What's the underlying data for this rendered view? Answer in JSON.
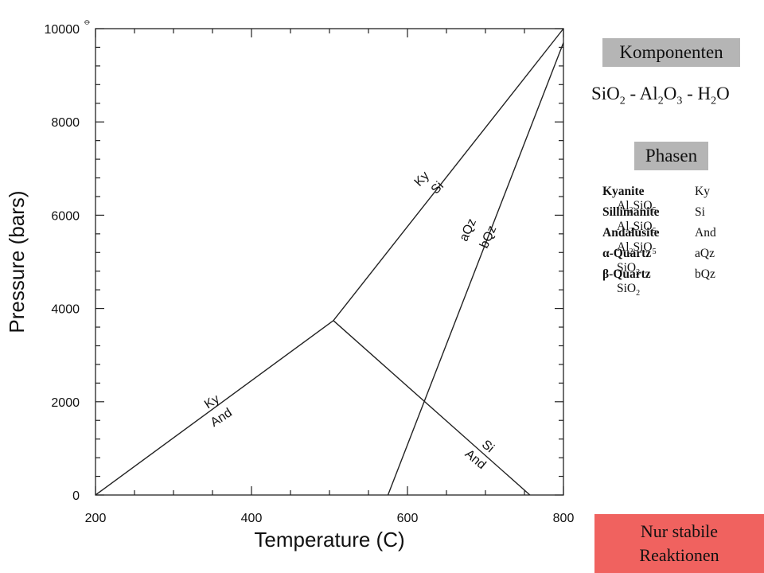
{
  "chart_data": {
    "type": "line",
    "xlabel": "Temperature (C)",
    "ylabel": "Pressure (bars)",
    "xlim": [
      200,
      800
    ],
    "ylim": [
      0,
      10000
    ],
    "x_ticks": [
      "200",
      "400",
      "600",
      "800"
    ],
    "y_ticks": [
      "0",
      "2000",
      "4000",
      "6000",
      "8000",
      "10000"
    ],
    "corner_mark": "⌽",
    "series": [
      {
        "x": [
          200,
          505
        ],
        "y": [
          0,
          3740
        ]
      },
      {
        "x": [
          505,
          800
        ],
        "y": [
          3740,
          10000
        ]
      },
      {
        "x": [
          505,
          757
        ],
        "y": [
          3740,
          0
        ]
      },
      {
        "x": [
          575,
          800
        ],
        "y": [
          0,
          9700
        ]
      }
    ],
    "annotations": [
      {
        "text": "Ky",
        "x": 352,
        "y": 1930,
        "angle": -33
      },
      {
        "text": "And",
        "x": 364,
        "y": 1590,
        "angle": -33
      },
      {
        "text": "Ky",
        "x": 622,
        "y": 6720,
        "angle": -47
      },
      {
        "text": "Si",
        "x": 642,
        "y": 6530,
        "angle": -47
      },
      {
        "text": "aQz",
        "x": 682,
        "y": 5650,
        "angle": -66
      },
      {
        "text": "bQz",
        "x": 708,
        "y": 5500,
        "angle": -66
      },
      {
        "text": "Si",
        "x": 700,
        "y": 980,
        "angle": 40
      },
      {
        "text": "And",
        "x": 684,
        "y": 700,
        "angle": 40
      }
    ]
  },
  "components": {
    "title": "Komponenten",
    "formula_parts": [
      "SiO",
      "2",
      " - Al",
      "2",
      "O",
      "3",
      " - H",
      "2",
      "O"
    ]
  },
  "phases": {
    "title": "Phasen",
    "items": [
      {
        "name": "Kyanite",
        "abbr": "Ky",
        "formula": [
          "Al",
          "2",
          "SiO",
          "5"
        ]
      },
      {
        "name": "Sillimanite",
        "abbr": "Si",
        "formula": [
          "Al",
          "2",
          "SiO",
          "5"
        ]
      },
      {
        "name": "Andalusite",
        "abbr": "And",
        "formula": [
          "Al",
          "2",
          "SiO",
          "5"
        ]
      },
      {
        "name": "α-Quartz",
        "abbr": "aQz",
        "formula": [
          "SiO",
          "2"
        ]
      },
      {
        "name": "β-Quartz",
        "abbr": "bQz",
        "formula": [
          "SiO",
          "2"
        ]
      }
    ]
  },
  "note": {
    "line1": "Nur stabile",
    "line2": "Reaktionen",
    "color": "#f0625f"
  }
}
